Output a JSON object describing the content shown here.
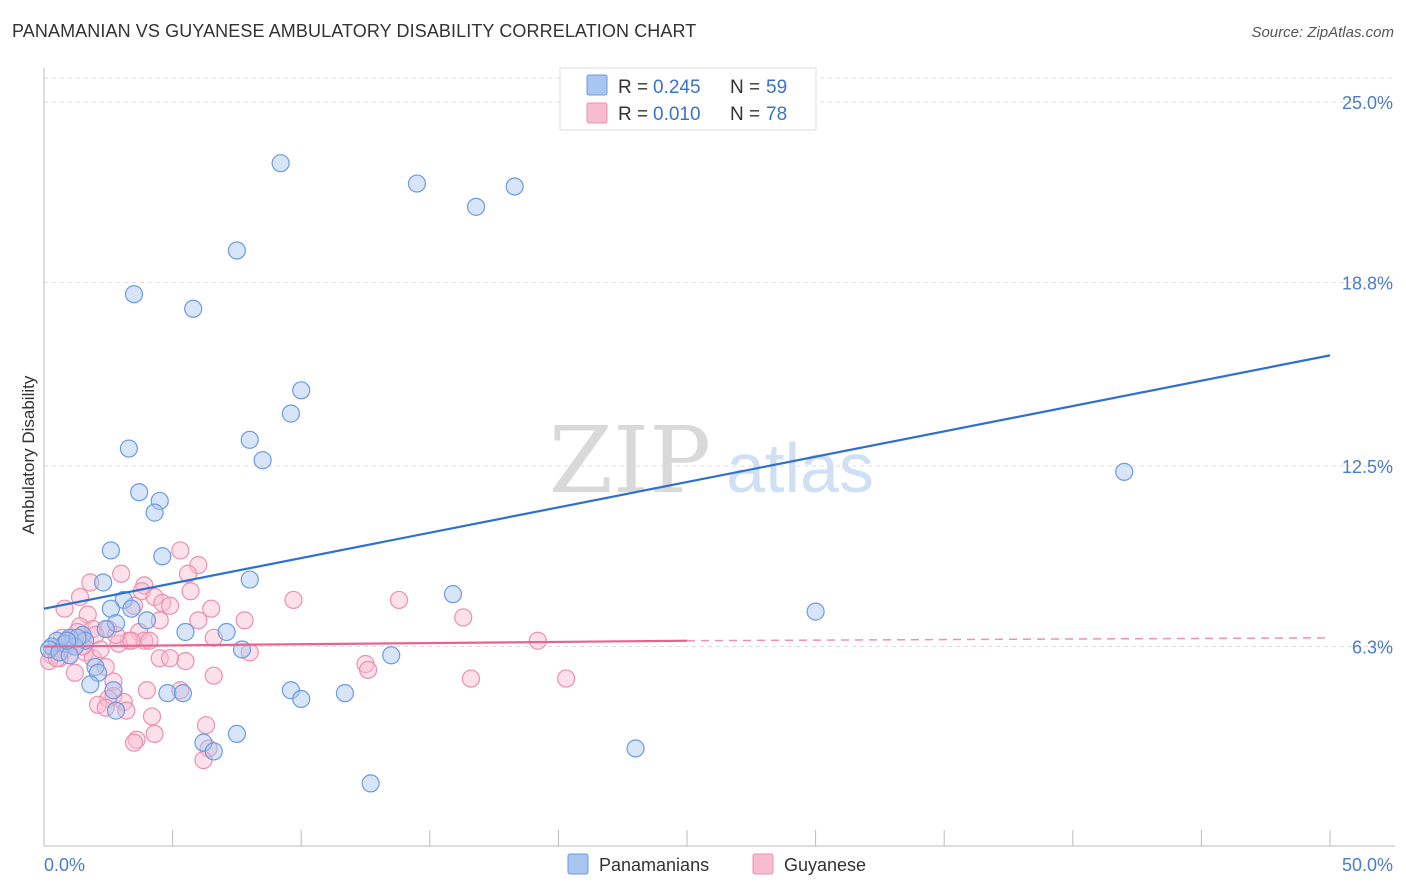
{
  "title": "PANAMANIAN VS GUYANESE AMBULATORY DISABILITY CORRELATION CHART",
  "source": "Source: ZipAtlas.com",
  "chart_data": {
    "type": "scatter",
    "ylabel": "Ambulatory Disability",
    "xlabel": "",
    "xlim": [
      0,
      50
    ],
    "ylim": [
      0,
      26.1
    ],
    "x_tick_labels": [
      "0.0%",
      "50.0%"
    ],
    "y_ticks": [
      {
        "value": 25.0,
        "label": "25.0%"
      },
      {
        "value": 18.8,
        "label": "18.8%"
      },
      {
        "value": 12.5,
        "label": "12.5%"
      },
      {
        "value": 6.3,
        "label": "6.3%"
      }
    ],
    "legend": [
      {
        "R_label": "R =",
        "R_value": "0.245",
        "N_label": "N =",
        "N_value": "59"
      },
      {
        "R_label": "R =",
        "R_value": "0.010",
        "N_label": "N =",
        "N_value": "78"
      }
    ],
    "colors": {
      "panamanians_fill": "#a9c6f0",
      "panamanians_stroke": "#6b9be0",
      "panamanians_line": "#2f6fd0",
      "guyanese_fill": "#f8bcd0",
      "guyanese_stroke": "#ee8fae",
      "guyanese_line": "#e8648e"
    },
    "series": [
      {
        "name": "Panamanians",
        "trend": {
          "x1": 0,
          "y1": 7.6,
          "x2": 50,
          "y2": 16.3
        },
        "points": [
          [
            9.2,
            22.9
          ],
          [
            14.5,
            22.2
          ],
          [
            18.3,
            22.1
          ],
          [
            16.8,
            21.4
          ],
          [
            7.5,
            19.9
          ],
          [
            3.5,
            18.4
          ],
          [
            5.8,
            17.9
          ],
          [
            10.0,
            15.1
          ],
          [
            9.6,
            14.3
          ],
          [
            3.3,
            13.1
          ],
          [
            8.0,
            13.4
          ],
          [
            8.5,
            12.7
          ],
          [
            3.7,
            11.6
          ],
          [
            4.5,
            11.3
          ],
          [
            4.3,
            10.9
          ],
          [
            2.6,
            9.6
          ],
          [
            4.6,
            9.4
          ],
          [
            2.3,
            8.5
          ],
          [
            8.0,
            8.6
          ],
          [
            3.1,
            7.9
          ],
          [
            3.4,
            7.6
          ],
          [
            2.6,
            7.6
          ],
          [
            15.9,
            8.1
          ],
          [
            30.0,
            7.5
          ],
          [
            4.0,
            7.2
          ],
          [
            2.8,
            7.1
          ],
          [
            2.4,
            6.9
          ],
          [
            5.5,
            6.8
          ],
          [
            7.1,
            6.8
          ],
          [
            1.5,
            6.7
          ],
          [
            1.0,
            6.6
          ],
          [
            0.5,
            6.5
          ],
          [
            1.6,
            6.5
          ],
          [
            0.8,
            6.4
          ],
          [
            1.2,
            6.3
          ],
          [
            0.3,
            6.3
          ],
          [
            0.2,
            6.2
          ],
          [
            0.6,
            6.1
          ],
          [
            1.0,
            6.0
          ],
          [
            7.7,
            6.2
          ],
          [
            13.5,
            6.0
          ],
          [
            2.0,
            5.6
          ],
          [
            2.1,
            5.4
          ],
          [
            1.8,
            5.0
          ],
          [
            2.7,
            4.8
          ],
          [
            4.8,
            4.7
          ],
          [
            5.4,
            4.7
          ],
          [
            9.6,
            4.8
          ],
          [
            11.7,
            4.7
          ],
          [
            10.0,
            4.5
          ],
          [
            2.8,
            4.1
          ],
          [
            6.2,
            3.0
          ],
          [
            7.5,
            3.3
          ],
          [
            6.6,
            2.7
          ],
          [
            23.0,
            2.8
          ],
          [
            12.7,
            1.6
          ],
          [
            42.0,
            12.3
          ],
          [
            1.3,
            6.6
          ],
          [
            0.9,
            6.5
          ]
        ]
      },
      {
        "name": "Guyanese",
        "trend": {
          "x1": 0,
          "y1": 6.3,
          "x2": 25,
          "y2": 6.5,
          "dash_to_x": 50,
          "dash_to_y": 6.6
        },
        "points": [
          [
            5.3,
            9.6
          ],
          [
            6.0,
            9.1
          ],
          [
            5.6,
            8.8
          ],
          [
            3.0,
            8.8
          ],
          [
            1.8,
            8.5
          ],
          [
            3.9,
            8.4
          ],
          [
            3.8,
            8.2
          ],
          [
            5.7,
            8.2
          ],
          [
            1.4,
            8.0
          ],
          [
            4.3,
            8.0
          ],
          [
            9.7,
            7.9
          ],
          [
            13.8,
            7.9
          ],
          [
            3.5,
            7.7
          ],
          [
            4.6,
            7.8
          ],
          [
            4.9,
            7.7
          ],
          [
            0.8,
            7.6
          ],
          [
            6.5,
            7.6
          ],
          [
            1.7,
            7.4
          ],
          [
            16.3,
            7.3
          ],
          [
            4.5,
            7.2
          ],
          [
            7.8,
            7.2
          ],
          [
            6.0,
            7.2
          ],
          [
            1.4,
            7.0
          ],
          [
            1.9,
            6.9
          ],
          [
            2.5,
            6.9
          ],
          [
            3.7,
            6.8
          ],
          [
            2.0,
            6.7
          ],
          [
            1.1,
            6.6
          ],
          [
            3.9,
            6.5
          ],
          [
            6.6,
            6.6
          ],
          [
            3.3,
            6.5
          ],
          [
            2.9,
            6.4
          ],
          [
            19.2,
            6.5
          ],
          [
            1.2,
            6.3
          ],
          [
            0.8,
            6.2
          ],
          [
            0.4,
            6.2
          ],
          [
            1.6,
            6.1
          ],
          [
            0.3,
            6.0
          ],
          [
            1.0,
            6.0
          ],
          [
            8.0,
            6.1
          ],
          [
            0.6,
            5.9
          ],
          [
            1.9,
            5.9
          ],
          [
            4.5,
            5.9
          ],
          [
            5.5,
            5.8
          ],
          [
            0.2,
            5.8
          ],
          [
            12.5,
            5.7
          ],
          [
            12.6,
            5.5
          ],
          [
            2.4,
            5.6
          ],
          [
            1.2,
            5.4
          ],
          [
            6.6,
            5.3
          ],
          [
            16.6,
            5.2
          ],
          [
            20.3,
            5.2
          ],
          [
            2.7,
            5.1
          ],
          [
            2.7,
            4.6
          ],
          [
            3.1,
            4.4
          ],
          [
            5.3,
            4.8
          ],
          [
            4.0,
            4.8
          ],
          [
            2.5,
            4.5
          ],
          [
            2.1,
            4.3
          ],
          [
            2.4,
            4.2
          ],
          [
            3.2,
            4.1
          ],
          [
            4.2,
            3.9
          ],
          [
            6.3,
            3.6
          ],
          [
            4.3,
            3.3
          ],
          [
            3.6,
            3.1
          ],
          [
            3.5,
            3.0
          ],
          [
            6.4,
            2.8
          ],
          [
            6.2,
            2.4
          ],
          [
            1.5,
            6.3
          ],
          [
            0.7,
            6.6
          ],
          [
            2.2,
            6.2
          ],
          [
            0.5,
            5.9
          ],
          [
            1.3,
            6.8
          ],
          [
            3.4,
            6.5
          ],
          [
            4.9,
            5.9
          ],
          [
            4.1,
            6.5
          ],
          [
            2.8,
            6.7
          ],
          [
            0.9,
            6.4
          ]
        ]
      }
    ]
  },
  "watermark": {
    "zip": "ZIP",
    "atlas": "atlas"
  }
}
